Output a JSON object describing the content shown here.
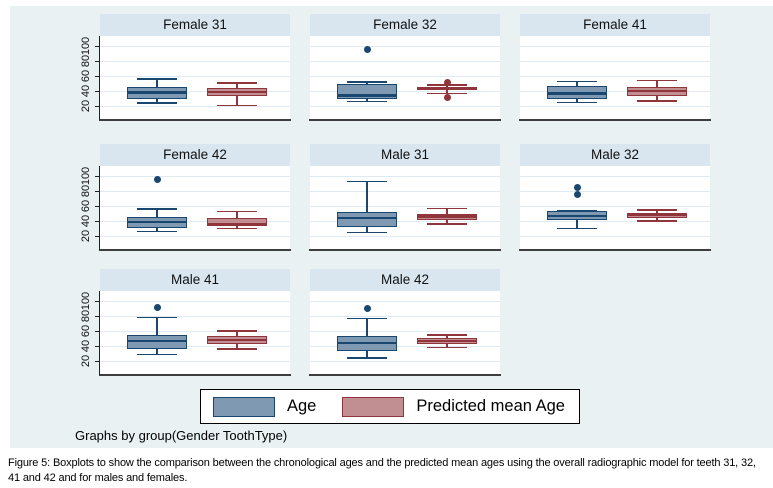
{
  "figure": {
    "background_color": "#e9f1f3",
    "panel_header_color": "#d9e6f0",
    "plot_background": "#ffffff",
    "gridline_color": "#dfeaf2",
    "axis_color": "#3d3d3d",
    "note": "Graphs by group(Gender ToothType)"
  },
  "caption": "Figure 5: Boxplots to show the comparison between the chronological ages and the predicted mean ages using the overall radiographic model for teeth 31, 32, 41 and 42 and for males and females.",
  "chart_data": {
    "type": "boxplot",
    "title": "",
    "xlabel": "",
    "ylabel": "",
    "yticks": [
      20,
      40,
      60,
      80,
      100
    ],
    "ylim": [
      2,
      113
    ],
    "grid": true,
    "legend_position": "bottom-center",
    "facet_by": "Gender ToothType",
    "series": [
      {
        "name": "Age",
        "fill": "#7f99b2",
        "stroke": "#1a476f"
      },
      {
        "name": "Predicted mean Age",
        "fill": "#c18e92",
        "stroke": "#90353b"
      }
    ],
    "panels": [
      {
        "title": "Female 31",
        "boxes": [
          {
            "series": "Age",
            "whisker_low": 24,
            "q1": 30,
            "median": 38,
            "q3": 46,
            "whisker_high": 56,
            "outliers": []
          },
          {
            "series": "Predicted mean Age",
            "whisker_low": 21,
            "q1": 33,
            "median": 39,
            "q3": 44,
            "whisker_high": 51,
            "outliers": []
          }
        ]
      },
      {
        "title": "Female 32",
        "boxes": [
          {
            "series": "Age",
            "whisker_low": 26,
            "q1": 29,
            "median": 34,
            "q3": 50,
            "whisker_high": 52,
            "outliers": [
              95
            ]
          },
          {
            "series": "Predicted mean Age",
            "whisker_low": 37,
            "q1": 42,
            "median": 44,
            "q3": 46,
            "whisker_high": 48,
            "outliers": [
              52,
              32
            ]
          }
        ]
      },
      {
        "title": "Female 41",
        "boxes": [
          {
            "series": "Age",
            "whisker_low": 25,
            "q1": 30,
            "median": 37,
            "q3": 47,
            "whisker_high": 53,
            "outliers": []
          },
          {
            "series": "Predicted mean Age",
            "whisker_low": 27,
            "q1": 33,
            "median": 40,
            "q3": 45,
            "whisker_high": 54,
            "outliers": []
          }
        ]
      },
      {
        "title": "Female 42",
        "boxes": [
          {
            "series": "Age",
            "whisker_low": 26,
            "q1": 31,
            "median": 39,
            "q3": 46,
            "whisker_high": 56,
            "outliers": [
              95
            ]
          },
          {
            "series": "Predicted mean Age",
            "whisker_low": 30,
            "q1": 33,
            "median": 36,
            "q3": 44,
            "whisker_high": 53,
            "outliers": []
          }
        ]
      },
      {
        "title": "Male 31",
        "boxes": [
          {
            "series": "Age",
            "whisker_low": 25,
            "q1": 32,
            "median": 44,
            "q3": 52,
            "whisker_high": 93,
            "outliers": []
          },
          {
            "series": "Predicted mean Age",
            "whisker_low": 36,
            "q1": 42,
            "median": 46,
            "q3": 50,
            "whisker_high": 57,
            "outliers": []
          }
        ]
      },
      {
        "title": "Male 32",
        "boxes": [
          {
            "series": "Age",
            "whisker_low": 30,
            "q1": 41,
            "median": 47,
            "q3": 53,
            "whisker_high": 54,
            "outliers": [
              75,
              85
            ]
          },
          {
            "series": "Predicted mean Age",
            "whisker_low": 40,
            "q1": 44,
            "median": 48,
            "q3": 51,
            "whisker_high": 55,
            "outliers": []
          }
        ]
      },
      {
        "title": "Male 41",
        "boxes": [
          {
            "series": "Age",
            "whisker_low": 29,
            "q1": 36,
            "median": 47,
            "q3": 55,
            "whisker_high": 78,
            "outliers": [
              92
            ]
          },
          {
            "series": "Predicted mean Age",
            "whisker_low": 36,
            "q1": 43,
            "median": 48,
            "q3": 53,
            "whisker_high": 60,
            "outliers": []
          }
        ]
      },
      {
        "title": "Male 42",
        "boxes": [
          {
            "series": "Age",
            "whisker_low": 24,
            "q1": 34,
            "median": 44,
            "q3": 53,
            "whisker_high": 77,
            "outliers": [
              90
            ]
          },
          {
            "series": "Predicted mean Age",
            "whisker_low": 38,
            "q1": 43,
            "median": 47,
            "q3": 51,
            "whisker_high": 55,
            "outliers": []
          }
        ]
      }
    ]
  }
}
